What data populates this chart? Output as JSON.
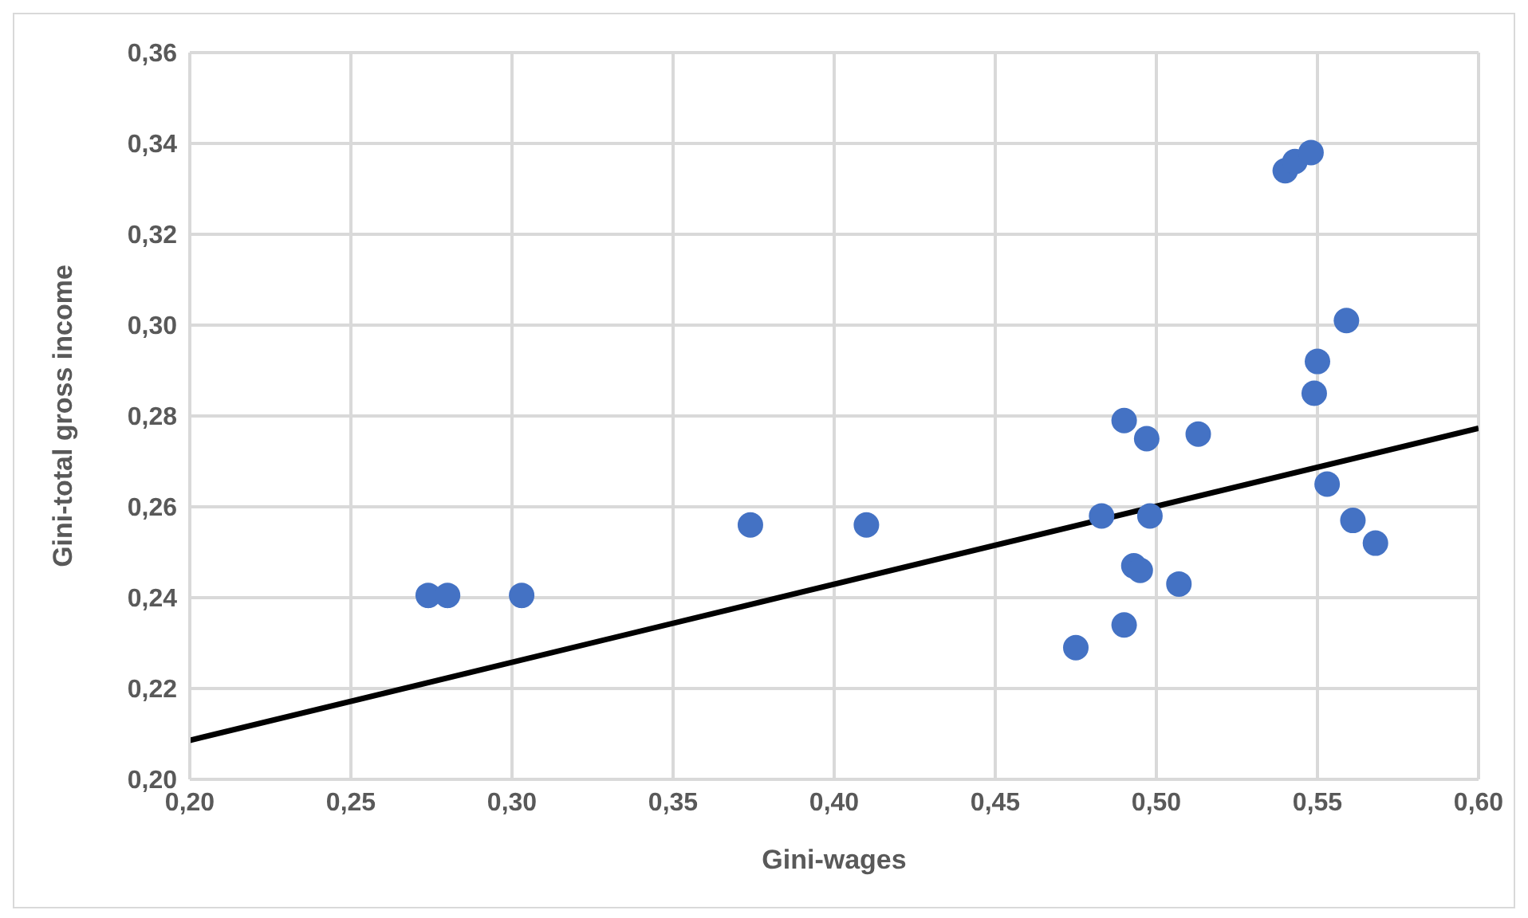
{
  "chart_data": {
    "type": "scatter",
    "xlabel": "Gini-wages",
    "ylabel": "Gini-total gross income",
    "grid": true,
    "xlim": [
      0.2,
      0.6
    ],
    "ylim": [
      0.2,
      0.36
    ],
    "xticks": [
      {
        "value": 0.2,
        "label": "0,20"
      },
      {
        "value": 0.25,
        "label": "0,25"
      },
      {
        "value": 0.3,
        "label": "0,30"
      },
      {
        "value": 0.35,
        "label": "0,35"
      },
      {
        "value": 0.4,
        "label": "0,40"
      },
      {
        "value": 0.45,
        "label": "0,45"
      },
      {
        "value": 0.5,
        "label": "0,50"
      },
      {
        "value": 0.55,
        "label": "0,55"
      },
      {
        "value": 0.6,
        "label": "0,60"
      }
    ],
    "yticks": [
      {
        "value": 0.2,
        "label": "0,20"
      },
      {
        "value": 0.22,
        "label": "0,22"
      },
      {
        "value": 0.24,
        "label": "0,24"
      },
      {
        "value": 0.26,
        "label": "0,26"
      },
      {
        "value": 0.28,
        "label": "0,28"
      },
      {
        "value": 0.3,
        "label": "0,30"
      },
      {
        "value": 0.32,
        "label": "0,32"
      },
      {
        "value": 0.34,
        "label": "0,34"
      },
      {
        "value": 0.36,
        "label": "0,36"
      }
    ],
    "series": [
      {
        "marker": "circle",
        "color": "#4472c4",
        "x": [
          0.274,
          0.28,
          0.303,
          0.374,
          0.41,
          0.475,
          0.483,
          0.49,
          0.49,
          0.493,
          0.495,
          0.497,
          0.498,
          0.507,
          0.513,
          0.54,
          0.543,
          0.548,
          0.549,
          0.55,
          0.553,
          0.559,
          0.561,
          0.568
        ],
        "values": [
          0.2405,
          0.2405,
          0.2405,
          0.256,
          0.256,
          0.229,
          0.258,
          0.234,
          0.279,
          0.247,
          0.246,
          0.275,
          0.258,
          0.243,
          0.276,
          0.334,
          0.336,
          0.338,
          0.285,
          0.292,
          0.265,
          0.301,
          0.257,
          0.252
        ]
      },
      {
        "type": "line",
        "color": "#000000",
        "x": [
          0.2,
          0.6
        ],
        "values": [
          0.2086,
          0.2773
        ]
      }
    ]
  }
}
